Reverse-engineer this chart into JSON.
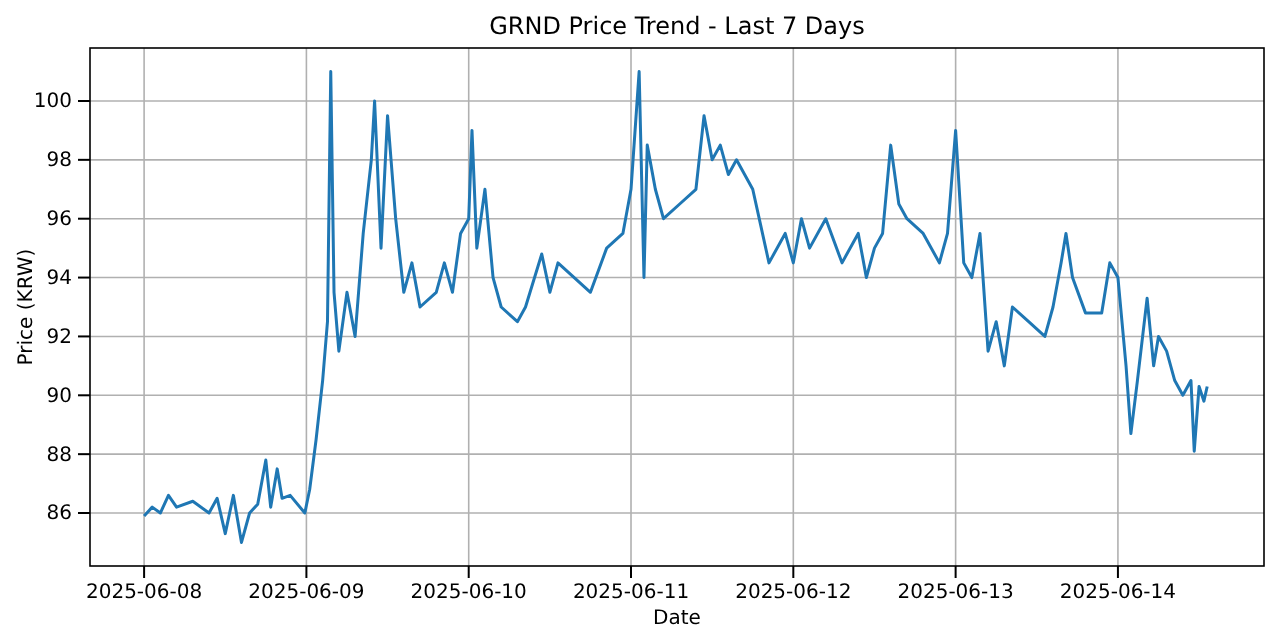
{
  "chart_data": {
    "type": "line",
    "title": "GRND Price Trend - Last 7 Days",
    "xlabel": "Date",
    "ylabel": "Price (KRW)",
    "grid": true,
    "line_style": "solid",
    "marker": "none",
    "xlim": [
      "2025-06-07T16:00",
      "2025-06-14T21:36"
    ],
    "xticks": [
      "2025-06-08",
      "2025-06-09",
      "2025-06-10",
      "2025-06-11",
      "2025-06-12",
      "2025-06-13",
      "2025-06-14"
    ],
    "ylim": [
      84.2,
      101.8
    ],
    "yticks": [
      86,
      88,
      90,
      92,
      94,
      96,
      98,
      100
    ],
    "x": [
      "2025-06-08T00:00",
      "2025-06-08T01:12",
      "2025-06-08T02:24",
      "2025-06-08T03:36",
      "2025-06-08T04:48",
      "2025-06-08T07:12",
      "2025-06-08T09:36",
      "2025-06-08T10:48",
      "2025-06-08T12:00",
      "2025-06-08T13:12",
      "2025-06-08T14:24",
      "2025-06-08T15:36",
      "2025-06-08T16:48",
      "2025-06-08T18:00",
      "2025-06-08T18:43",
      "2025-06-08T19:41",
      "2025-06-08T20:24",
      "2025-06-08T21:36",
      "2025-06-08T23:46",
      "2025-06-09T00:29",
      "2025-06-09T01:26",
      "2025-06-09T02:24",
      "2025-06-09T03:07",
      "2025-06-09T03:36",
      "2025-06-09T04:05",
      "2025-06-09T04:48",
      "2025-06-09T06:00",
      "2025-06-09T07:12",
      "2025-06-09T08:24",
      "2025-06-09T09:36",
      "2025-06-09T10:05",
      "2025-06-09T11:02",
      "2025-06-09T12:00",
      "2025-06-09T13:12",
      "2025-06-09T14:24",
      "2025-06-09T15:36",
      "2025-06-09T16:48",
      "2025-06-09T19:12",
      "2025-06-09T20:24",
      "2025-06-09T21:36",
      "2025-06-09T22:48",
      "2025-06-10T00:00",
      "2025-06-10T00:29",
      "2025-06-10T01:12",
      "2025-06-10T02:24",
      "2025-06-10T03:36",
      "2025-06-10T04:48",
      "2025-06-10T07:12",
      "2025-06-10T08:24",
      "2025-06-10T10:48",
      "2025-06-10T12:00",
      "2025-06-10T13:12",
      "2025-06-10T15:36",
      "2025-06-10T18:00",
      "2025-06-10T20:24",
      "2025-06-10T22:48",
      "2025-06-11T00:00",
      "2025-06-11T01:12",
      "2025-06-11T01:55",
      "2025-06-11T02:24",
      "2025-06-11T03:36",
      "2025-06-11T04:48",
      "2025-06-11T07:12",
      "2025-06-11T09:36",
      "2025-06-11T10:48",
      "2025-06-11T12:00",
      "2025-06-11T13:12",
      "2025-06-11T14:24",
      "2025-06-11T15:36",
      "2025-06-11T18:00",
      "2025-06-11T20:24",
      "2025-06-11T22:48",
      "2025-06-12T00:00",
      "2025-06-12T01:12",
      "2025-06-12T02:24",
      "2025-06-12T04:48",
      "2025-06-12T07:12",
      "2025-06-12T09:36",
      "2025-06-12T10:48",
      "2025-06-12T12:00",
      "2025-06-12T13:12",
      "2025-06-12T14:24",
      "2025-06-12T15:36",
      "2025-06-12T16:48",
      "2025-06-12T19:12",
      "2025-06-12T21:36",
      "2025-06-12T22:48",
      "2025-06-13T00:00",
      "2025-06-13T01:12",
      "2025-06-13T02:24",
      "2025-06-13T03:36",
      "2025-06-13T04:48",
      "2025-06-13T06:00",
      "2025-06-13T07:12",
      "2025-06-13T08:24",
      "2025-06-13T10:48",
      "2025-06-13T13:12",
      "2025-06-13T14:24",
      "2025-06-13T15:36",
      "2025-06-13T16:19",
      "2025-06-13T17:17",
      "2025-06-13T19:12",
      "2025-06-13T21:36",
      "2025-06-13T22:48",
      "2025-06-14T00:00",
      "2025-06-14T01:12",
      "2025-06-14T01:55",
      "2025-06-14T02:53",
      "2025-06-14T04:19",
      "2025-06-14T05:17",
      "2025-06-14T06:00",
      "2025-06-14T07:12",
      "2025-06-14T08:24",
      "2025-06-14T09:36",
      "2025-06-14T10:48",
      "2025-06-14T11:17",
      "2025-06-14T12:00",
      "2025-06-14T12:43",
      "2025-06-14T13:12"
    ],
    "series": [
      {
        "color": "#1f77b4",
        "values": [
          85.9,
          86.2,
          86.0,
          86.6,
          86.2,
          86.4,
          86.0,
          86.5,
          85.3,
          86.6,
          85.0,
          86.0,
          86.3,
          87.8,
          86.2,
          87.5,
          86.5,
          86.6,
          86.0,
          86.8,
          88.5,
          90.5,
          92.5,
          101.0,
          93.5,
          91.5,
          93.5,
          92.0,
          95.5,
          98.0,
          100.0,
          95.0,
          99.5,
          96.0,
          93.5,
          94.5,
          93.0,
          93.5,
          94.5,
          93.5,
          95.5,
          96.0,
          99.0,
          95.0,
          97.0,
          94.0,
          93.0,
          92.5,
          93.0,
          94.8,
          93.5,
          94.5,
          94.0,
          93.5,
          95.0,
          95.5,
          97.0,
          101.0,
          94.0,
          98.5,
          97.0,
          96.0,
          96.5,
          97.0,
          99.5,
          98.0,
          98.5,
          97.5,
          98.0,
          97.0,
          94.5,
          95.5,
          94.5,
          96.0,
          95.0,
          96.0,
          94.5,
          95.5,
          94.0,
          95.0,
          95.5,
          98.5,
          96.5,
          96.0,
          95.5,
          94.5,
          95.5,
          99.0,
          94.5,
          94.0,
          95.5,
          91.5,
          92.5,
          91.0,
          93.0,
          92.5,
          92.0,
          93.0,
          94.5,
          95.5,
          94.0,
          92.8,
          92.8,
          94.5,
          94.0,
          91.0,
          88.7,
          90.5,
          93.3,
          91.0,
          92.0,
          91.5,
          90.5,
          90.0,
          90.5,
          88.1,
          90.3,
          89.8,
          90.3
        ]
      }
    ]
  }
}
